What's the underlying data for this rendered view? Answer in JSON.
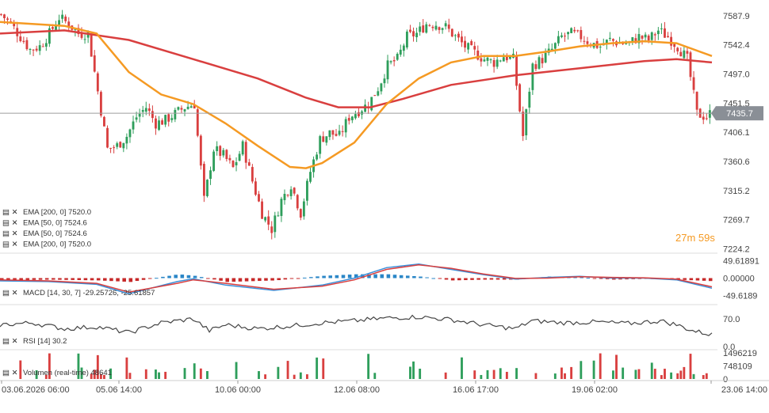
{
  "chart_data": {
    "type": "candlestick",
    "x_tick_labels": [
      "03.06.2026 06:00",
      "05.06 14:00",
      "10.06 00:00",
      "12.06 08:00",
      "16.06 17:00",
      "19.06 02:00",
      "23.06 14:00"
    ],
    "y_tick_labels": [
      "7587.9",
      "7542.4",
      "7497.0",
      "7451.5",
      "7406.1",
      "7360.6",
      "7315.2",
      "7269.7",
      "7224.2"
    ],
    "ylim": [
      7220,
      7600
    ],
    "current_price": 7435.7,
    "current_price_label": "7435.7",
    "countdown": "27m 59s",
    "indicators": [
      {
        "label": "EMA [200, 0] 7520.0",
        "color": "#d93f3f"
      },
      {
        "label": "EMA [50, 0] 7524.6",
        "color": "#f59a23"
      },
      {
        "label": "EMA [50, 0] 7524.6",
        "color": "#f59a23"
      },
      {
        "label": "EMA [200, 0] 7520.0",
        "color": "#d93f3f"
      }
    ],
    "close_path": [
      [
        0,
        7590
      ],
      [
        3,
        7575
      ],
      [
        6,
        7555
      ],
      [
        9,
        7535
      ],
      [
        12,
        7540
      ],
      [
        15,
        7560
      ],
      [
        18,
        7585
      ],
      [
        21,
        7575
      ],
      [
        24,
        7560
      ],
      [
        27,
        7560
      ],
      [
        30,
        7470
      ],
      [
        33,
        7380
      ],
      [
        36,
        7385
      ],
      [
        39,
        7400
      ],
      [
        42,
        7430
      ],
      [
        45,
        7445
      ],
      [
        48,
        7420
      ],
      [
        51,
        7425
      ],
      [
        54,
        7435
      ],
      [
        57,
        7445
      ],
      [
        60,
        7450
      ],
      [
        63,
        7300
      ],
      [
        66,
        7380
      ],
      [
        69,
        7370
      ],
      [
        72,
        7350
      ],
      [
        75,
        7385
      ],
      [
        78,
        7330
      ],
      [
        81,
        7280
      ],
      [
        84,
        7255
      ],
      [
        87,
        7300
      ],
      [
        90,
        7325
      ],
      [
        93,
        7280
      ],
      [
        96,
        7345
      ],
      [
        99,
        7395
      ],
      [
        102,
        7405
      ],
      [
        105,
        7400
      ],
      [
        108,
        7430
      ],
      [
        111,
        7440
      ],
      [
        114,
        7450
      ],
      [
        117,
        7475
      ],
      [
        120,
        7510
      ],
      [
        123,
        7520
      ],
      [
        126,
        7555
      ],
      [
        129,
        7560
      ],
      [
        132,
        7575
      ],
      [
        135,
        7575
      ],
      [
        138,
        7570
      ],
      [
        141,
        7555
      ],
      [
        144,
        7540
      ],
      [
        147,
        7530
      ],
      [
        150,
        7520
      ],
      [
        153,
        7515
      ],
      [
        156,
        7525
      ],
      [
        159,
        7520
      ],
      [
        162,
        7400
      ],
      [
        165,
        7510
      ],
      [
        168,
        7520
      ],
      [
        171,
        7535
      ],
      [
        174,
        7555
      ],
      [
        177,
        7560
      ],
      [
        180,
        7555
      ],
      [
        183,
        7545
      ],
      [
        186,
        7540
      ],
      [
        189,
        7550
      ],
      [
        192,
        7545
      ],
      [
        195,
        7545
      ],
      [
        198,
        7555
      ],
      [
        201,
        7550
      ],
      [
        204,
        7565
      ],
      [
        207,
        7555
      ],
      [
        210,
        7540
      ],
      [
        213,
        7520
      ],
      [
        216,
        7435
      ],
      [
        219,
        7430
      ],
      [
        221,
        7440
      ]
    ],
    "ema50_path": [
      [
        0,
        7578
      ],
      [
        10,
        7575
      ],
      [
        20,
        7572
      ],
      [
        30,
        7560
      ],
      [
        40,
        7500
      ],
      [
        50,
        7465
      ],
      [
        60,
        7450
      ],
      [
        70,
        7420
      ],
      [
        80,
        7385
      ],
      [
        90,
        7352
      ],
      [
        95,
        7350
      ],
      [
        100,
        7358
      ],
      [
        110,
        7390
      ],
      [
        120,
        7450
      ],
      [
        130,
        7490
      ],
      [
        140,
        7515
      ],
      [
        150,
        7525
      ],
      [
        160,
        7525
      ],
      [
        170,
        7532
      ],
      [
        180,
        7540
      ],
      [
        190,
        7545
      ],
      [
        200,
        7548
      ],
      [
        210,
        7545
      ],
      [
        221,
        7525
      ]
    ],
    "ema200_path": [
      [
        0,
        7560
      ],
      [
        20,
        7565
      ],
      [
        40,
        7550
      ],
      [
        60,
        7520
      ],
      [
        80,
        7490
      ],
      [
        95,
        7460
      ],
      [
        105,
        7445
      ],
      [
        115,
        7445
      ],
      [
        125,
        7458
      ],
      [
        140,
        7480
      ],
      [
        160,
        7495
      ],
      [
        180,
        7506
      ],
      [
        200,
        7517
      ],
      [
        210,
        7520
      ],
      [
        221,
        7515
      ]
    ],
    "macd": {
      "label": "MACD [14, 30, 7] -29.25726, -25.61857",
      "y_tick_labels": [
        "49.61891",
        "0.00000",
        "-49.6189"
      ],
      "ylim": [
        -60,
        60
      ],
      "macd_path": [
        [
          0,
          -8
        ],
        [
          15,
          -10
        ],
        [
          30,
          -18
        ],
        [
          40,
          -45
        ],
        [
          55,
          -10
        ],
        [
          60,
          -2
        ],
        [
          70,
          -20
        ],
        [
          85,
          -35
        ],
        [
          100,
          -20
        ],
        [
          110,
          0
        ],
        [
          120,
          30
        ],
        [
          130,
          40
        ],
        [
          140,
          25
        ],
        [
          150,
          10
        ],
        [
          160,
          -3
        ],
        [
          170,
          2
        ],
        [
          180,
          5
        ],
        [
          190,
          0
        ],
        [
          200,
          0
        ],
        [
          210,
          -5
        ],
        [
          221,
          -29
        ]
      ],
      "signal_path": [
        [
          0,
          -5
        ],
        [
          15,
          -8
        ],
        [
          30,
          -15
        ],
        [
          40,
          -40
        ],
        [
          55,
          -15
        ],
        [
          60,
          -5
        ],
        [
          70,
          -15
        ],
        [
          85,
          -32
        ],
        [
          100,
          -23
        ],
        [
          110,
          -5
        ],
        [
          120,
          25
        ],
        [
          130,
          38
        ],
        [
          140,
          28
        ],
        [
          150,
          12
        ],
        [
          160,
          -1
        ],
        [
          170,
          0
        ],
        [
          180,
          4
        ],
        [
          190,
          2
        ],
        [
          200,
          1
        ],
        [
          210,
          -3
        ],
        [
          221,
          -25
        ]
      ]
    },
    "rsi": {
      "label": "RSI [14] 30.2",
      "y_tick_labels": [
        "70.0",
        "0.0"
      ],
      "ylim": [
        0,
        100
      ],
      "path": [
        [
          0,
          55
        ],
        [
          10,
          60
        ],
        [
          20,
          45
        ],
        [
          30,
          50
        ],
        [
          40,
          35
        ],
        [
          50,
          60
        ],
        [
          60,
          70
        ],
        [
          65,
          40
        ],
        [
          70,
          55
        ],
        [
          80,
          45
        ],
        [
          90,
          52
        ],
        [
          100,
          60
        ],
        [
          110,
          65
        ],
        [
          120,
          72
        ],
        [
          130,
          75
        ],
        [
          140,
          68
        ],
        [
          150,
          55
        ],
        [
          160,
          45
        ],
        [
          165,
          65
        ],
        [
          175,
          60
        ],
        [
          185,
          62
        ],
        [
          195,
          58
        ],
        [
          205,
          65
        ],
        [
          210,
          55
        ],
        [
          215,
          40
        ],
        [
          221,
          30
        ]
      ]
    },
    "volume": {
      "label": "Volumen (real-time) 48641",
      "y_tick_labels": [
        "1496219",
        "748109",
        "0"
      ],
      "ylim": [
        0,
        1500000
      ]
    }
  }
}
